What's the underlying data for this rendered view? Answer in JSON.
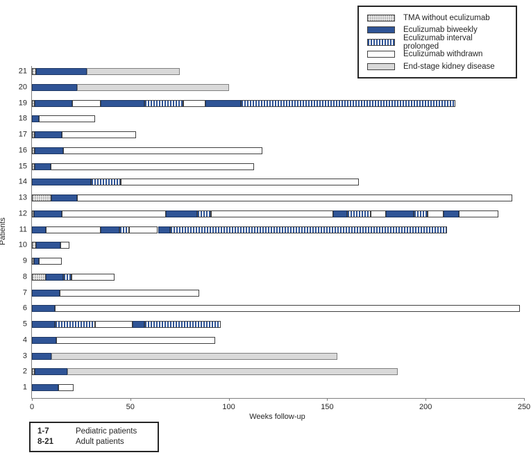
{
  "colors": {
    "biweekly_blue": "#2F5496",
    "eskd_gray": "#D9D9D9",
    "bar_border": "#404040",
    "axis_gray": "#7f7f7f"
  },
  "axes": {
    "x_title": "Weeks follow-up",
    "y_title": "Patients"
  },
  "footnote": {
    "rows": [
      {
        "range": "1-7",
        "label": "Pediatric patients"
      },
      {
        "range": "8-21",
        "label": "Adult patients"
      }
    ]
  },
  "chart_data": {
    "type": "bar",
    "orientation": "horizontal",
    "title": "",
    "xlabel": "Weeks follow-up",
    "ylabel": "Patients",
    "xlim": [
      0,
      250
    ],
    "xticks": [
      0,
      50,
      100,
      150,
      200,
      250
    ],
    "grid": false,
    "legend_position": "top-right",
    "legend": [
      {
        "key": "tma",
        "label": "TMA without eculizumab"
      },
      {
        "key": "biweekly",
        "label": "Eculizumab biweekly"
      },
      {
        "key": "prolonged",
        "label": "Eculizumab interval prolonged"
      },
      {
        "key": "withdrawn",
        "label": "Eculizumab withdrawn"
      },
      {
        "key": "eskd",
        "label": "End-stage kidney disease"
      }
    ],
    "patients": [
      {
        "id": 21,
        "segments": [
          {
            "type": "tma",
            "start": 0,
            "end": 2
          },
          {
            "type": "biweekly",
            "start": 2,
            "end": 28
          },
          {
            "type": "eskd",
            "start": 28,
            "end": 75
          }
        ]
      },
      {
        "id": 20,
        "segments": [
          {
            "type": "biweekly",
            "start": 0,
            "end": 23
          },
          {
            "type": "eskd",
            "start": 23,
            "end": 100
          }
        ]
      },
      {
        "id": 19,
        "segments": [
          {
            "type": "tma",
            "start": 0,
            "end": 1.5
          },
          {
            "type": "biweekly",
            "start": 1.5,
            "end": 20.5
          },
          {
            "type": "withdrawn",
            "start": 20.5,
            "end": 35
          },
          {
            "type": "biweekly",
            "start": 35,
            "end": 57
          },
          {
            "type": "prolonged",
            "start": 57,
            "end": 77
          },
          {
            "type": "withdrawn",
            "start": 77,
            "end": 88
          },
          {
            "type": "biweekly",
            "start": 88,
            "end": 106
          },
          {
            "type": "prolonged",
            "start": 106,
            "end": 215
          }
        ]
      },
      {
        "id": 18,
        "segments": [
          {
            "type": "biweekly",
            "start": 0,
            "end": 3.5
          },
          {
            "type": "withdrawn",
            "start": 3.5,
            "end": 32
          }
        ]
      },
      {
        "id": 17,
        "segments": [
          {
            "type": "tma",
            "start": 0,
            "end": 1.5
          },
          {
            "type": "biweekly",
            "start": 1.5,
            "end": 15
          },
          {
            "type": "withdrawn",
            "start": 15,
            "end": 53
          }
        ]
      },
      {
        "id": 16,
        "segments": [
          {
            "type": "tma",
            "start": 0,
            "end": 1.5
          },
          {
            "type": "biweekly",
            "start": 1.5,
            "end": 16
          },
          {
            "type": "withdrawn",
            "start": 16,
            "end": 117
          }
        ]
      },
      {
        "id": 15,
        "segments": [
          {
            "type": "tma",
            "start": 0,
            "end": 1.5
          },
          {
            "type": "biweekly",
            "start": 1.5,
            "end": 9.5
          },
          {
            "type": "withdrawn",
            "start": 9.5,
            "end": 113
          }
        ]
      },
      {
        "id": 14,
        "segments": [
          {
            "type": "biweekly",
            "start": 0,
            "end": 30
          },
          {
            "type": "prolonged",
            "start": 30,
            "end": 45
          },
          {
            "type": "withdrawn",
            "start": 45,
            "end": 166
          }
        ]
      },
      {
        "id": 13,
        "segments": [
          {
            "type": "tma",
            "start": 0,
            "end": 10
          },
          {
            "type": "biweekly",
            "start": 10,
            "end": 23
          },
          {
            "type": "withdrawn",
            "start": 23,
            "end": 244
          }
        ]
      },
      {
        "id": 12,
        "segments": [
          {
            "type": "tma",
            "start": 0,
            "end": 1
          },
          {
            "type": "biweekly",
            "start": 1,
            "end": 15
          },
          {
            "type": "withdrawn",
            "start": 15,
            "end": 68
          },
          {
            "type": "biweekly",
            "start": 68,
            "end": 84
          },
          {
            "type": "prolonged",
            "start": 84,
            "end": 91
          },
          {
            "type": "withdrawn",
            "start": 91,
            "end": 153
          },
          {
            "type": "biweekly",
            "start": 153,
            "end": 160
          },
          {
            "type": "prolonged",
            "start": 160,
            "end": 172
          },
          {
            "type": "withdrawn",
            "start": 172,
            "end": 180
          },
          {
            "type": "biweekly",
            "start": 180,
            "end": 194
          },
          {
            "type": "prolonged",
            "start": 194,
            "end": 201
          },
          {
            "type": "withdrawn",
            "start": 201,
            "end": 209
          },
          {
            "type": "biweekly",
            "start": 209,
            "end": 217
          },
          {
            "type": "withdrawn",
            "start": 217,
            "end": 237
          }
        ]
      },
      {
        "id": 11,
        "segments": [
          {
            "type": "biweekly",
            "start": 0,
            "end": 7
          },
          {
            "type": "withdrawn",
            "start": 7,
            "end": 35
          },
          {
            "type": "biweekly",
            "start": 35,
            "end": 44.5
          },
          {
            "type": "prolonged",
            "start": 44.5,
            "end": 49.5
          },
          {
            "type": "withdrawn",
            "start": 49.5,
            "end": 64
          },
          {
            "type": "biweekly",
            "start": 64,
            "end": 70
          },
          {
            "type": "prolonged",
            "start": 70,
            "end": 211
          }
        ]
      },
      {
        "id": 10,
        "segments": [
          {
            "type": "tma",
            "start": 0,
            "end": 2
          },
          {
            "type": "biweekly",
            "start": 2,
            "end": 14.5
          },
          {
            "type": "withdrawn",
            "start": 14.5,
            "end": 19
          }
        ]
      },
      {
        "id": 9,
        "segments": [
          {
            "type": "tma",
            "start": 0,
            "end": 1
          },
          {
            "type": "biweekly",
            "start": 1,
            "end": 3.5
          },
          {
            "type": "withdrawn",
            "start": 3.5,
            "end": 15
          }
        ]
      },
      {
        "id": 8,
        "segments": [
          {
            "type": "tma",
            "start": 0,
            "end": 7
          },
          {
            "type": "biweekly",
            "start": 7,
            "end": 16
          },
          {
            "type": "prolonged",
            "start": 16,
            "end": 20
          },
          {
            "type": "withdrawn",
            "start": 20,
            "end": 42
          }
        ]
      },
      {
        "id": 7,
        "segments": [
          {
            "type": "biweekly",
            "start": 0,
            "end": 14
          },
          {
            "type": "withdrawn",
            "start": 14,
            "end": 85
          }
        ]
      },
      {
        "id": 6,
        "segments": [
          {
            "type": "biweekly",
            "start": 0,
            "end": 11.5
          },
          {
            "type": "withdrawn",
            "start": 11.5,
            "end": 248
          }
        ]
      },
      {
        "id": 5,
        "segments": [
          {
            "type": "biweekly",
            "start": 0,
            "end": 11.5
          },
          {
            "type": "prolonged",
            "start": 11.5,
            "end": 32
          },
          {
            "type": "withdrawn",
            "start": 32,
            "end": 51
          },
          {
            "type": "biweekly",
            "start": 51,
            "end": 57
          },
          {
            "type": "prolonged",
            "start": 57,
            "end": 96
          }
        ]
      },
      {
        "id": 4,
        "segments": [
          {
            "type": "biweekly",
            "start": 0,
            "end": 12.5
          },
          {
            "type": "withdrawn",
            "start": 12.5,
            "end": 93
          }
        ]
      },
      {
        "id": 3,
        "segments": [
          {
            "type": "biweekly",
            "start": 0,
            "end": 10
          },
          {
            "type": "eskd",
            "start": 10,
            "end": 155
          }
        ]
      },
      {
        "id": 2,
        "segments": [
          {
            "type": "tma",
            "start": 0,
            "end": 1.5
          },
          {
            "type": "biweekly",
            "start": 1.5,
            "end": 18
          },
          {
            "type": "eskd",
            "start": 18,
            "end": 186
          }
        ]
      },
      {
        "id": 1,
        "segments": [
          {
            "type": "biweekly",
            "start": 0,
            "end": 13.5
          },
          {
            "type": "withdrawn",
            "start": 13.5,
            "end": 21
          }
        ]
      }
    ]
  }
}
